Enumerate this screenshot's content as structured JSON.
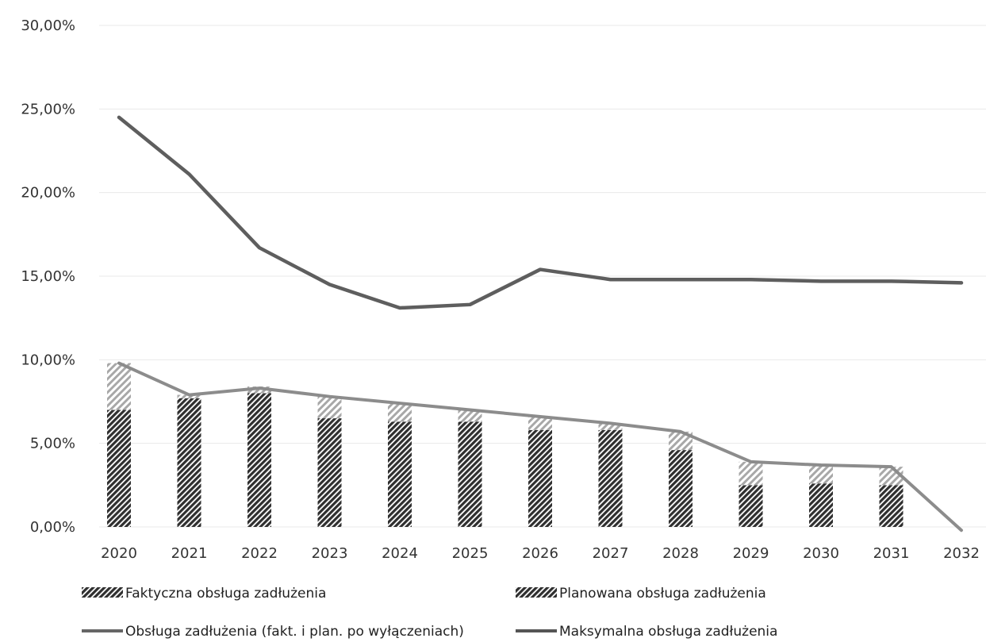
{
  "chart_data": {
    "type": "bar",
    "title": "",
    "xlabel": "",
    "ylabel": "",
    "ylim": [
      0,
      30
    ],
    "y_ticks": [
      "30,00%",
      "25,00%",
      "20,00%",
      "15,00%",
      "10,00%",
      "5,00%",
      "0,00%"
    ],
    "y_tick_values": [
      30,
      25,
      20,
      15,
      10,
      5,
      0
    ],
    "categories": [
      "2020",
      "2021",
      "2022",
      "2023",
      "2024",
      "2025",
      "2026",
      "2027",
      "2028",
      "2029",
      "2030",
      "2031",
      "2032"
    ],
    "grid": true,
    "legend_position": "bottom",
    "series": [
      {
        "name": "Faktyczna obsługa zadłużenia",
        "kind": "bar",
        "stack": "debt",
        "pattern": "dense-hatch",
        "color": "#3a3a3a",
        "values": [
          7.0,
          7.7,
          8.0,
          6.5,
          6.3,
          6.3,
          5.8,
          5.8,
          4.6,
          2.5,
          2.6,
          2.5,
          0
        ]
      },
      {
        "name": "Planowana obsługa zadłużenia",
        "kind": "bar",
        "stack": "debt",
        "pattern": "light-hatch",
        "color": "#9a9a9a",
        "values": [
          2.8,
          0.2,
          0.4,
          1.3,
          1.1,
          0.7,
          0.8,
          0.4,
          1.1,
          1.4,
          1.1,
          1.1,
          0
        ]
      },
      {
        "name": "Obsługa zadłużenia (fakt. i plan. po wyłączeniach)",
        "kind": "line",
        "color": "#8c8c8c",
        "values": [
          9.8,
          7.9,
          8.3,
          7.8,
          7.4,
          7.0,
          6.6,
          6.2,
          5.7,
          3.9,
          3.7,
          3.6,
          -0.2
        ]
      },
      {
        "name": "Maksymalna obsługa zadłużenia",
        "kind": "line",
        "color": "#5e5e5e",
        "values": [
          24.5,
          21.1,
          16.7,
          14.5,
          13.1,
          13.3,
          15.4,
          14.8,
          14.8,
          14.8,
          14.7,
          14.7,
          14.6
        ]
      }
    ]
  }
}
